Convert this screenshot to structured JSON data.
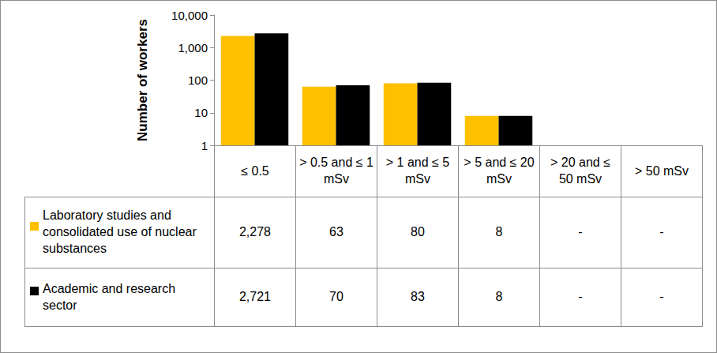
{
  "chart_data": {
    "type": "bar",
    "y_label": "Number of workers",
    "categories": [
      "≤ 0.5",
      "> 0.5 and ≤ 1 mSv",
      "> 1 and ≤ 5 mSv",
      "> 5 and ≤ 20 mSv",
      "> 20 and ≤ 50 mSv",
      "> 50 mSv"
    ],
    "series": [
      {
        "name": "Laboratory studies and consolidated use of nuclear substances",
        "color": "#ffc000",
        "values": [
          2278,
          63,
          80,
          8,
          null,
          null
        ],
        "value_labels": [
          "2,278",
          "63",
          "80",
          "8",
          "-",
          "-"
        ]
      },
      {
        "name": "Academic and research sector",
        "color": "#000000",
        "values": [
          2721,
          70,
          83,
          8,
          null,
          null
        ],
        "value_labels": [
          "2,721",
          "70",
          "83",
          "8",
          "-",
          "-"
        ]
      }
    ],
    "log": "y",
    "ylim": [
      1,
      10000
    ],
    "yticks": [
      1,
      10,
      100,
      {
        "value": 1000,
        "label": "1,000"
      },
      {
        "value": 10000,
        "label": "10,000"
      }
    ],
    "grid": false
  }
}
